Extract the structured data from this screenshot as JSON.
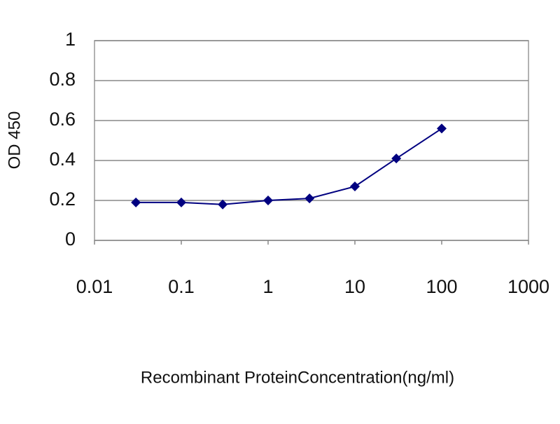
{
  "chart_data": {
    "type": "line",
    "x_label": "Recombinant ProteinConcentration(ng/ml)",
    "y_label": "OD 450",
    "x": [
      0.03,
      0.1,
      0.3,
      1,
      3,
      10,
      30,
      100
    ],
    "values": [
      0.19,
      0.19,
      0.18,
      0.2,
      0.21,
      0.27,
      0.41,
      0.56
    ],
    "color": "#000080",
    "xscale": "log",
    "xlim": [
      0.01,
      1000
    ],
    "xticks": [
      0.01,
      0.1,
      1,
      10,
      100,
      1000
    ],
    "ylim": [
      0,
      1
    ],
    "yticks": [
      0,
      0.2,
      0.4,
      0.6,
      0.8,
      1
    ],
    "grid": true
  }
}
